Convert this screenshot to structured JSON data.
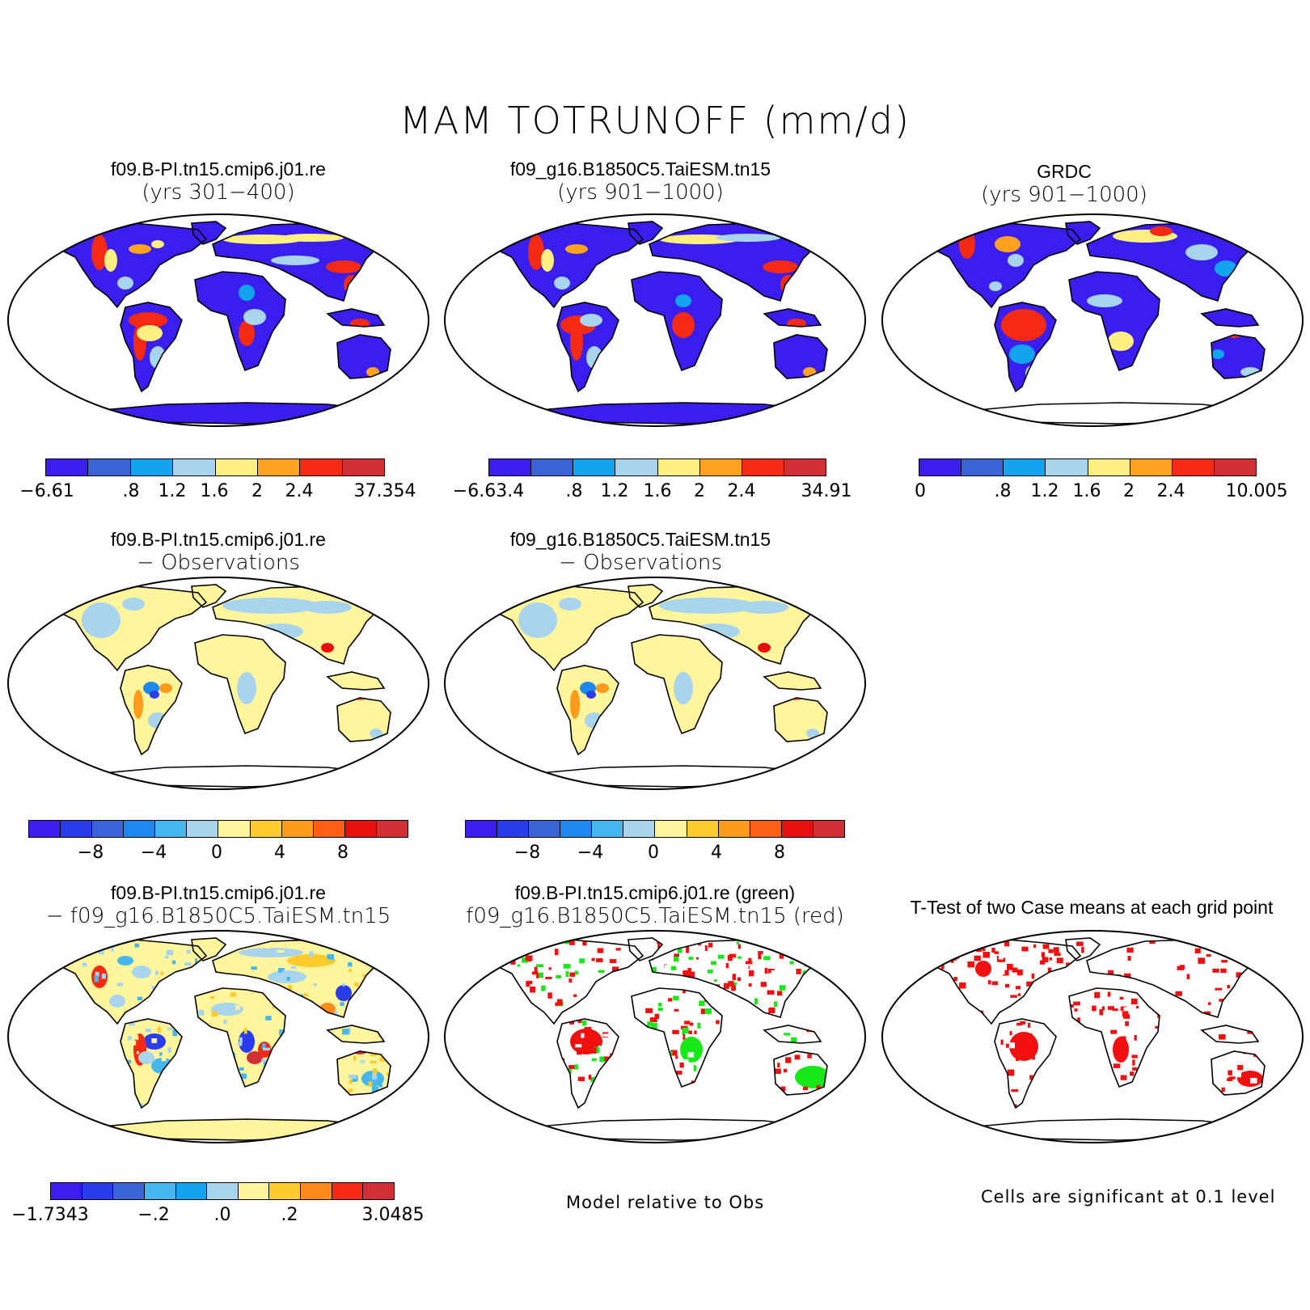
{
  "main_title": "MAM TOTRUNOFF (mm/d)",
  "panels": [
    {
      "title1": "f09.B-PI.tn15.cmip6.j01.re",
      "title2": "(yrs 301−400)",
      "style": "abs1"
    },
    {
      "title1": "f09_g16.B1850C5.TaiESM.tn15",
      "title2": "(yrs 901−1000)",
      "style": "abs2"
    },
    {
      "title1": "GRDC",
      "title2": "(yrs 901−1000)",
      "style": "obs"
    },
    {
      "title1": "f09.B-PI.tn15.cmip6.j01.re",
      "title2": "− Observations",
      "style": "diff"
    },
    {
      "title1": "f09_g16.B1850C5.TaiESM.tn15",
      "title2": "− Observations",
      "style": "diff"
    },
    {
      "title1": "f09.B-PI.tn15.cmip6.j01.re",
      "title2": "− f09_g16.B1850C5.TaiESM.tn15",
      "style": "cdiff"
    },
    {
      "title1": "f09.B-PI.tn15.cmip6.j01.re (green)",
      "title2": "f09_g16.B1850C5.TaiESM.tn15 (red)",
      "style": "rel"
    },
    {
      "title1": "T-Test of two Case means at each grid point",
      "title2": "",
      "style": "ttest"
    }
  ],
  "colorbars": {
    "abs_colors": [
      "#3a1ef0",
      "#3b63d8",
      "#13a4f0",
      "#a8d4ee",
      "#fdef80",
      "#ffa21f",
      "#f42a14",
      "#d02f35"
    ],
    "diff_colors": [
      "#3a1ef0",
      "#2a3dec",
      "#3b63d8",
      "#1e88f0",
      "#45b7ee",
      "#a8d4ee",
      "#fff59c",
      "#fdcb2e",
      "#ff9a1a",
      "#ff5e14",
      "#e8100e",
      "#d02f35"
    ],
    "cdiff_colors": [
      "#3a1ef0",
      "#2a3dec",
      "#3b63d8",
      "#45b7ee",
      "#13a4f0",
      "#a8d4ee",
      "#fff59c",
      "#fdcb2e",
      "#ff8a1a",
      "#f42a14",
      "#d02f35"
    ],
    "cb1_labels": [
      "−6.61",
      ".8",
      "1.2",
      "1.6",
      "2",
      "2.4",
      "37.354"
    ],
    "cb2_labels": [
      "−6.63.4",
      ".8",
      "1.2",
      "1.6",
      "2",
      "2.4",
      "34.91"
    ],
    "cb3_labels": [
      "0",
      ".8",
      "1.2",
      "1.6",
      "2",
      "2.4",
      "10.005"
    ],
    "cb4_labels": [
      "−8",
      "−4",
      "0",
      "4",
      "8"
    ],
    "cb5_labels": [
      "−8",
      "−4",
      "0",
      "4",
      "8"
    ],
    "cb6_labels": [
      "−1.7343",
      "−.2",
      ".0",
      ".2",
      "3.0485"
    ]
  },
  "notes": {
    "relative": "Model relative to Obs",
    "significance": "Cells are significant at 0.1 level"
  },
  "map_colors": {
    "ocean": "#ffffff",
    "coast": "#000000",
    "green": "#18e818",
    "red": "#f01010"
  }
}
